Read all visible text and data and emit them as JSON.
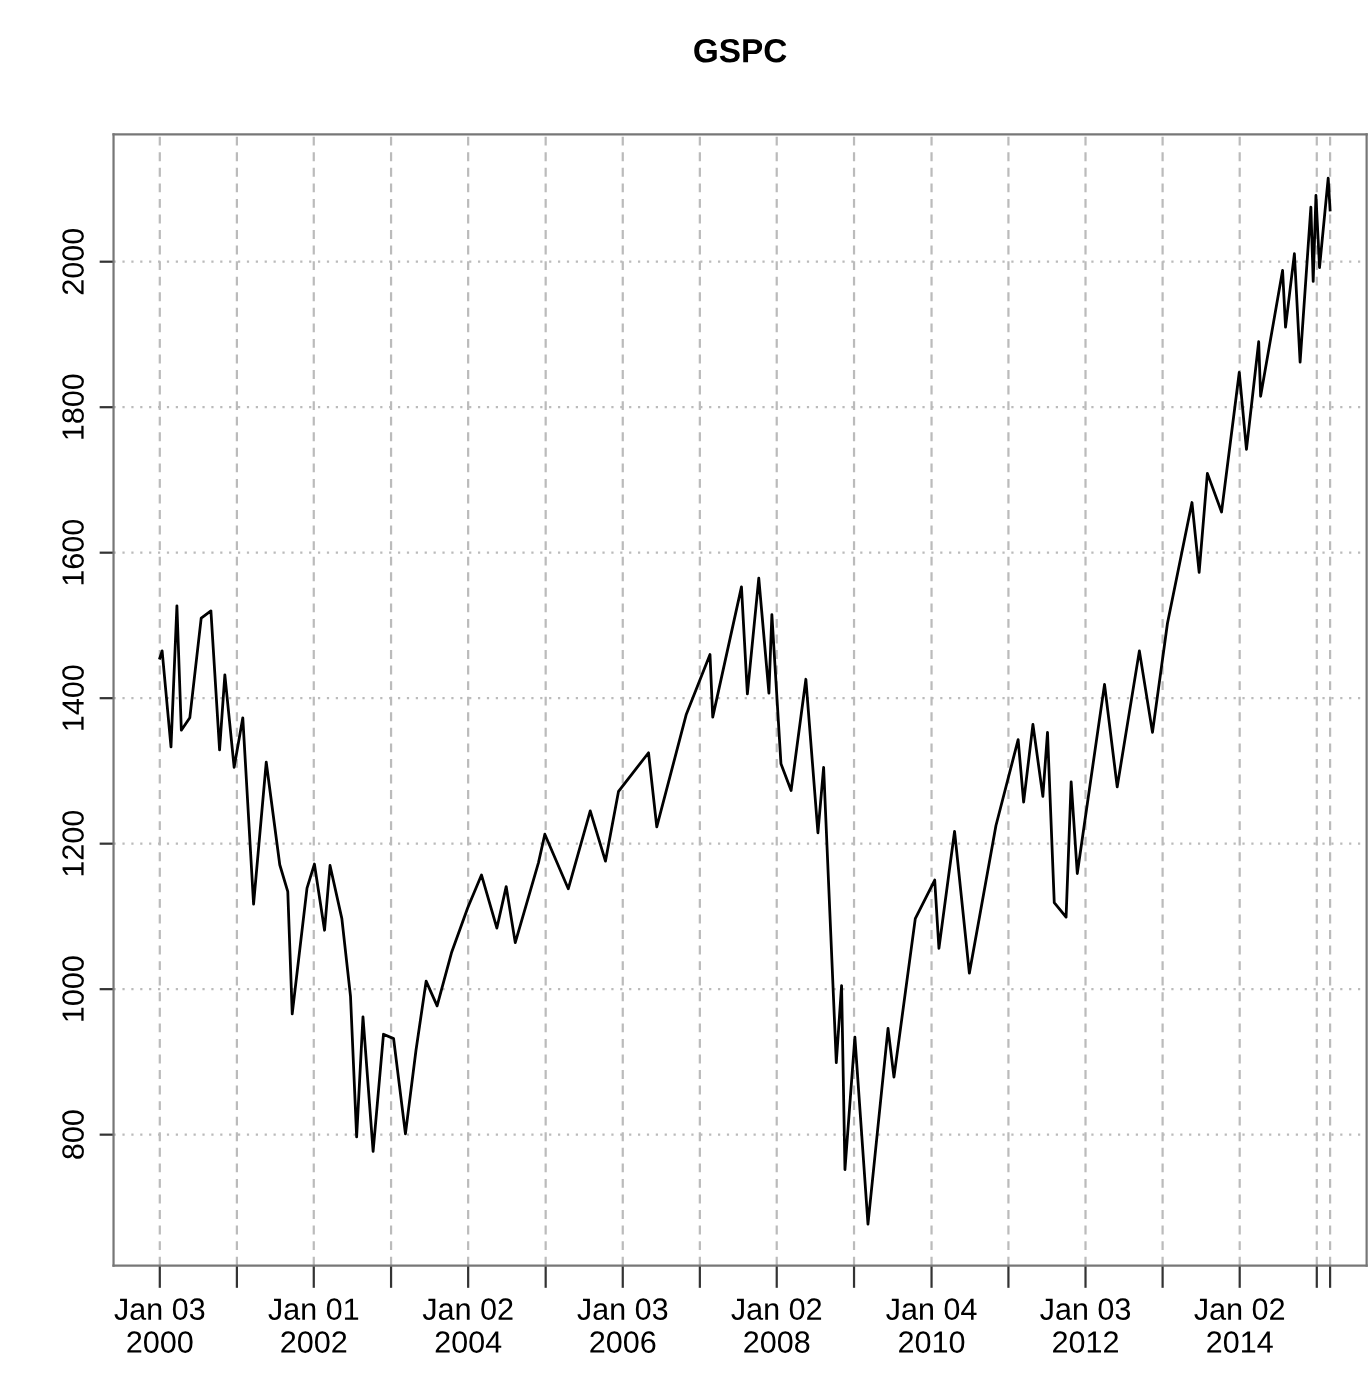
{
  "chart_data": {
    "type": "line",
    "title": "GSPC",
    "x": [
      "2000-01-03",
      "2000-01-14",
      "2000-02-25",
      "2000-03-24",
      "2000-04-14",
      "2000-05-24",
      "2000-07-17",
      "2000-09-01",
      "2000-10-12",
      "2000-11-06",
      "2000-12-20",
      "2001-01-30",
      "2001-03-22",
      "2001-05-21",
      "2001-07-24",
      "2001-08-31",
      "2001-09-21",
      "2001-11-30",
      "2002-01-04",
      "2002-02-21",
      "2002-03-19",
      "2002-05-14",
      "2002-06-24",
      "2002-07-23",
      "2002-08-22",
      "2002-10-09",
      "2002-11-27",
      "2003-01-14",
      "2003-03-11",
      "2003-04-30",
      "2003-06-17",
      "2003-08-08",
      "2003-10-15",
      "2003-12-31",
      "2004-03-05",
      "2004-05-17",
      "2004-06-30",
      "2004-08-12",
      "2004-11-30",
      "2004-12-30",
      "2005-04-20",
      "2005-08-02",
      "2005-10-13",
      "2005-12-14",
      "2006-05-05",
      "2006-06-13",
      "2006-10-31",
      "2007-02-20",
      "2007-03-05",
      "2007-07-19",
      "2007-08-16",
      "2007-10-09",
      "2007-11-26",
      "2007-12-10",
      "2008-01-22",
      "2008-03-10",
      "2008-05-19",
      "2008-07-15",
      "2008-08-11",
      "2008-10-10",
      "2008-11-04",
      "2008-11-20",
      "2009-01-06",
      "2009-03-09",
      "2009-06-12",
      "2009-07-10",
      "2009-10-19",
      "2010-01-19",
      "2010-02-08",
      "2010-04-23",
      "2010-07-02",
      "2010-11-05",
      "2011-02-18",
      "2011-03-16",
      "2011-04-29",
      "2011-06-15",
      "2011-07-07",
      "2011-08-08",
      "2011-10-03",
      "2011-10-27",
      "2011-11-25",
      "2012-04-02",
      "2012-06-01",
      "2012-09-14",
      "2012-11-15",
      "2013-01-25",
      "2013-05-21",
      "2013-06-24",
      "2013-08-02",
      "2013-10-08",
      "2013-12-31",
      "2014-02-03",
      "2014-04-02",
      "2014-04-11",
      "2014-07-24",
      "2014-08-07",
      "2014-09-18",
      "2014-10-15",
      "2014-12-05",
      "2014-12-16",
      "2014-12-29",
      "2015-01-15",
      "2015-02-25",
      "2015-03-06"
    ],
    "series": [
      {
        "color": "#000000",
        "values": [
          1455,
          1465,
          1333,
          1527,
          1356,
          1373,
          1510,
          1520,
          1329,
          1432,
          1305,
          1373,
          1117,
          1312,
          1171,
          1134,
          966,
          1139,
          1172,
          1081,
          1170,
          1097,
          990,
          797,
          962,
          777,
          938,
          932,
          801,
          916,
          1011,
          977,
          1050,
          1112,
          1157,
          1084,
          1141,
          1064,
          1174,
          1213,
          1138,
          1245,
          1176,
          1272,
          1325,
          1223,
          1378,
          1460,
          1374,
          1553,
          1406,
          1565,
          1407,
          1515,
          1310,
          1273,
          1426,
          1215,
          1305,
          899,
          1005,
          752,
          934,
          677,
          946,
          879,
          1097,
          1150,
          1056,
          1217,
          1022,
          1225,
          1343,
          1257,
          1364,
          1265,
          1353,
          1119,
          1099,
          1285,
          1159,
          1419,
          1278,
          1465,
          1353,
          1503,
          1669,
          1573,
          1709,
          1656,
          1848,
          1742,
          1890,
          1815,
          1988,
          1910,
          2011,
          1862,
          2075,
          1973,
          2091,
          1992,
          2115,
          2071
        ]
      }
    ],
    "xlim": [
      "1999-05-29",
      "2015-08-26"
    ],
    "xticks": [
      {
        "value": "2000-01-03",
        "label": "Jan 03\n2000"
      },
      {
        "value": "2001-01-02",
        "label": null
      },
      {
        "value": "2002-01-01",
        "label": "Jan 01\n2002"
      },
      {
        "value": "2003-01-02",
        "label": null
      },
      {
        "value": "2004-01-02",
        "label": "Jan 02\n2004"
      },
      {
        "value": "2005-01-03",
        "label": null
      },
      {
        "value": "2006-01-03",
        "label": "Jan 03\n2006"
      },
      {
        "value": "2007-01-03",
        "label": null
      },
      {
        "value": "2008-01-02",
        "label": "Jan 02\n2008"
      },
      {
        "value": "2009-01-02",
        "label": null
      },
      {
        "value": "2010-01-04",
        "label": "Jan 04\n2010"
      },
      {
        "value": "2011-01-03",
        "label": null
      },
      {
        "value": "2012-01-03",
        "label": "Jan 03\n2012"
      },
      {
        "value": "2013-01-02",
        "label": null
      },
      {
        "value": "2014-01-02",
        "label": "Jan 02\n2014"
      },
      {
        "value": "2015-01-02",
        "label": null
      },
      {
        "value": "2015-03-06",
        "label": null
      }
    ],
    "ylim": [
      620,
      2175
    ],
    "yticks": [
      800,
      1000,
      1200,
      1400,
      1600,
      1800,
      2000
    ],
    "grid": true,
    "line_style": "solid",
    "marker": "none"
  }
}
